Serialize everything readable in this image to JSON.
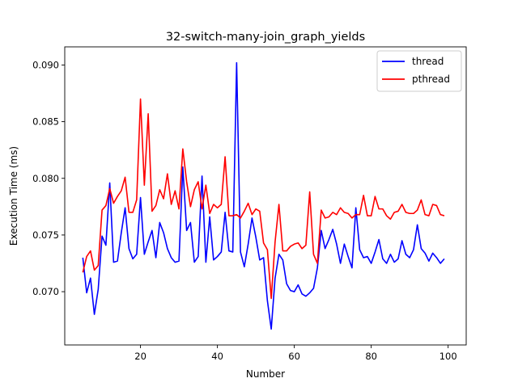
{
  "chart_data": {
    "type": "line",
    "title": "32-switch-many-join_graph_yields",
    "xlabel": "Number",
    "ylabel": "Execution Time (ms)",
    "xlim": [
      0.3,
      104.7
    ],
    "ylim": [
      0.0653,
      0.0916
    ],
    "xticks": [
      20,
      40,
      60,
      80,
      100
    ],
    "yticks": [
      0.07,
      0.075,
      0.08,
      0.085,
      0.09
    ],
    "xtick_labels": [
      "20",
      "40",
      "60",
      "80",
      "100"
    ],
    "ytick_labels": [
      "0.070",
      "0.075",
      "0.080",
      "0.085",
      "0.090"
    ],
    "legend_position": "top-right",
    "grid": false,
    "x": [
      5,
      6,
      7,
      8,
      9,
      10,
      11,
      12,
      13,
      14,
      15,
      16,
      17,
      18,
      19,
      20,
      21,
      22,
      23,
      24,
      25,
      26,
      27,
      28,
      29,
      30,
      31,
      32,
      33,
      34,
      35,
      36,
      37,
      38,
      39,
      40,
      41,
      42,
      43,
      44,
      45,
      46,
      47,
      48,
      49,
      50,
      51,
      52,
      53,
      54,
      55,
      56,
      57,
      58,
      59,
      60,
      61,
      62,
      63,
      64,
      65,
      66,
      67,
      68,
      69,
      70,
      71,
      72,
      73,
      74,
      75,
      76,
      77,
      78,
      79,
      80,
      81,
      82,
      83,
      84,
      85,
      86,
      87,
      88,
      89,
      90,
      91,
      92,
      93,
      94,
      95,
      96,
      97,
      98,
      99
    ],
    "series": [
      {
        "name": "thread",
        "color": "#0000ff",
        "values": [
          0.073,
          0.0699,
          0.0712,
          0.068,
          0.0702,
          0.0749,
          0.0741,
          0.0796,
          0.0726,
          0.0727,
          0.0752,
          0.0774,
          0.0738,
          0.0729,
          0.0733,
          0.0783,
          0.0733,
          0.0744,
          0.0754,
          0.073,
          0.0761,
          0.0752,
          0.0738,
          0.073,
          0.0726,
          0.0727,
          0.081,
          0.0754,
          0.0761,
          0.0726,
          0.0731,
          0.0802,
          0.0726,
          0.0766,
          0.0728,
          0.0731,
          0.0735,
          0.077,
          0.0736,
          0.0735,
          0.0902,
          0.0735,
          0.0722,
          0.0742,
          0.0765,
          0.0748,
          0.0728,
          0.073,
          0.0692,
          0.0667,
          0.0712,
          0.0733,
          0.0728,
          0.0707,
          0.0701,
          0.07,
          0.0706,
          0.0698,
          0.0696,
          0.0699,
          0.0703,
          0.0721,
          0.0754,
          0.0738,
          0.0746,
          0.0755,
          0.0742,
          0.0725,
          0.0742,
          0.0731,
          0.0721,
          0.0774,
          0.0737,
          0.073,
          0.0731,
          0.0725,
          0.0735,
          0.0746,
          0.0729,
          0.0725,
          0.0733,
          0.0726,
          0.0729,
          0.0745,
          0.0733,
          0.073,
          0.0737,
          0.0759,
          0.0738,
          0.0734,
          0.0727,
          0.0734,
          0.073,
          0.0725,
          0.0729
        ]
      },
      {
        "name": "pthread",
        "color": "#ff0000",
        "values": [
          0.0717,
          0.0731,
          0.0736,
          0.0719,
          0.0723,
          0.0772,
          0.0776,
          0.0791,
          0.0778,
          0.0784,
          0.0789,
          0.0801,
          0.077,
          0.077,
          0.0781,
          0.087,
          0.0794,
          0.0857,
          0.0771,
          0.0776,
          0.079,
          0.0782,
          0.0804,
          0.0777,
          0.0789,
          0.0773,
          0.0826,
          0.0797,
          0.0775,
          0.079,
          0.0797,
          0.0773,
          0.0794,
          0.0769,
          0.0777,
          0.0774,
          0.0777,
          0.0819,
          0.0767,
          0.0767,
          0.0768,
          0.0765,
          0.0771,
          0.0778,
          0.0768,
          0.0773,
          0.0771,
          0.0743,
          0.0737,
          0.0694,
          0.0744,
          0.0777,
          0.0736,
          0.0736,
          0.074,
          0.0742,
          0.0743,
          0.0738,
          0.0741,
          0.0788,
          0.0733,
          0.0725,
          0.0772,
          0.0765,
          0.0766,
          0.077,
          0.0768,
          0.0774,
          0.077,
          0.0769,
          0.0765,
          0.0768,
          0.0768,
          0.0785,
          0.0767,
          0.0767,
          0.0784,
          0.0773,
          0.0773,
          0.0767,
          0.0764,
          0.077,
          0.0771,
          0.0777,
          0.077,
          0.0769,
          0.0769,
          0.0772,
          0.0781,
          0.0768,
          0.0767,
          0.0777,
          0.0776,
          0.0768,
          0.0767
        ]
      }
    ]
  }
}
